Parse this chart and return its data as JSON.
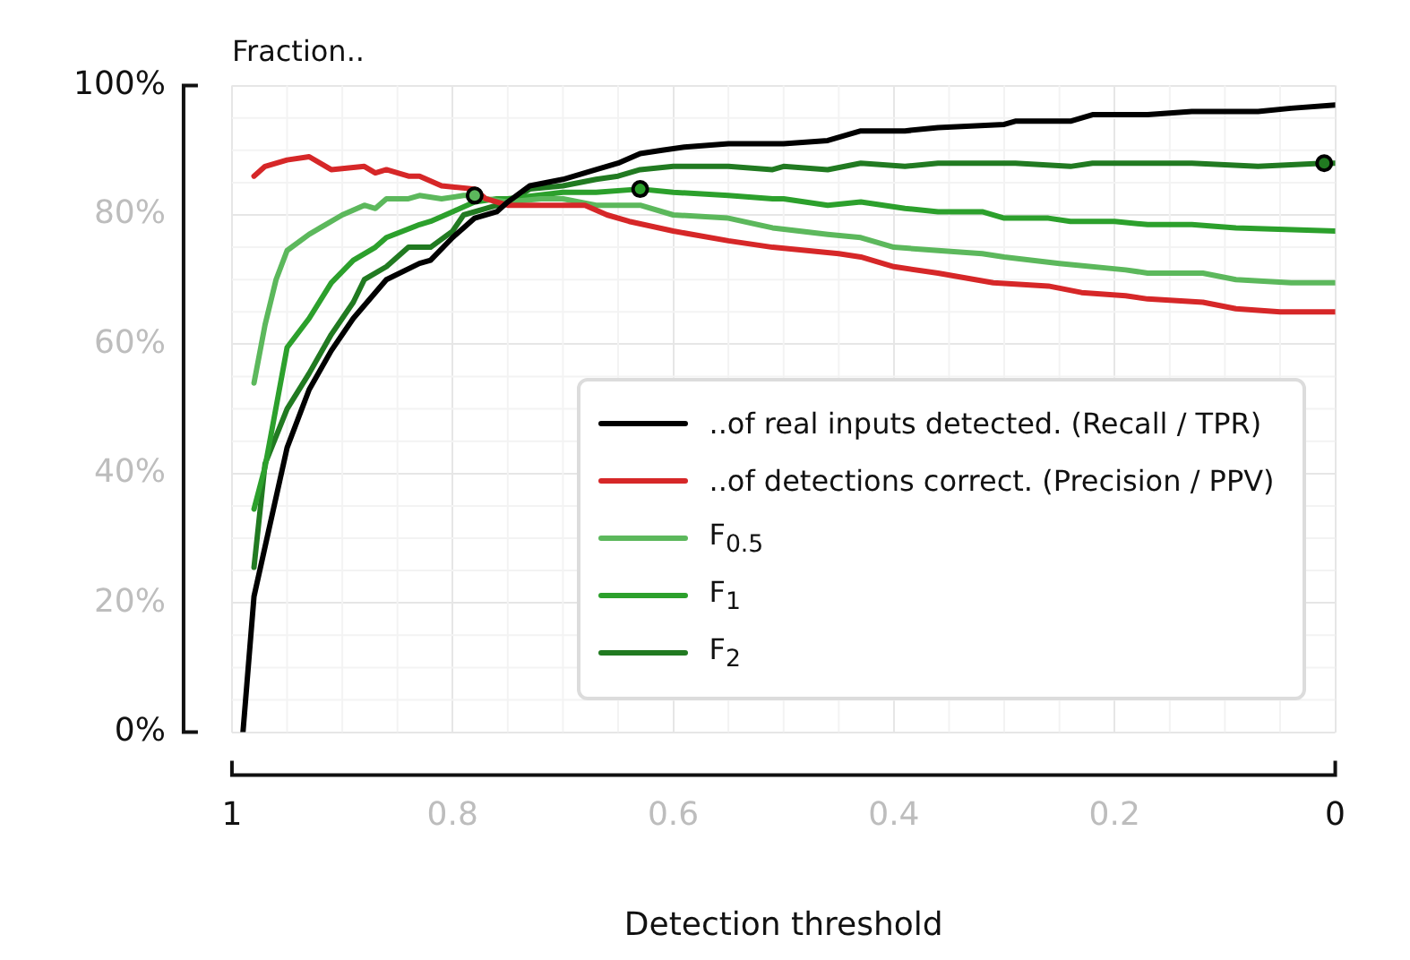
{
  "chart_data": {
    "type": "line",
    "ylabel": "Fraction..",
    "xlabel": "Detection threshold",
    "xlim": [
      1,
      0
    ],
    "xticks": [
      1,
      0.8,
      0.6,
      0.4,
      0.2,
      0
    ],
    "ylim": [
      0,
      100
    ],
    "yticks": [
      {
        "value": 0,
        "label": "0%"
      },
      {
        "value": 20,
        "label": "20%"
      },
      {
        "value": 40,
        "label": "40%"
      },
      {
        "value": 60,
        "label": "60%"
      },
      {
        "value": 80,
        "label": "80%"
      },
      {
        "value": 100,
        "label": "100%"
      }
    ],
    "grid": true,
    "legend": "bottom right",
    "marker": "none",
    "series": [
      {
        "name": "..of real inputs detected. (Recall / TPR)",
        "color": "#000000",
        "x": [
          0.99,
          0.98,
          0.95,
          0.93,
          0.91,
          0.89,
          0.86,
          0.83,
          0.82,
          0.8,
          0.78,
          0.76,
          0.75,
          0.73,
          0.7,
          0.67,
          0.65,
          0.63,
          0.61,
          0.59,
          0.55,
          0.5,
          0.46,
          0.43,
          0.39,
          0.36,
          0.3,
          0.29,
          0.24,
          0.22,
          0.17,
          0.13,
          0.07,
          0.04,
          0
        ],
        "values": [
          0,
          21,
          44,
          53,
          59,
          64,
          70,
          72.5,
          73,
          76.5,
          79.5,
          80.5,
          82,
          84.5,
          85.5,
          87,
          88,
          89.5,
          90,
          90.5,
          91,
          91,
          91.5,
          93,
          93,
          93.5,
          94,
          94.5,
          94.5,
          95.5,
          95.5,
          96,
          96,
          96.5,
          97
        ]
      },
      {
        "name": "..of detections correct. (Precision / PPV)",
        "color": "#d62728",
        "x": [
          0.98,
          0.97,
          0.95,
          0.93,
          0.91,
          0.88,
          0.87,
          0.86,
          0.84,
          0.83,
          0.81,
          0.78,
          0.77,
          0.75,
          0.73,
          0.7,
          0.68,
          0.66,
          0.64,
          0.6,
          0.55,
          0.51,
          0.45,
          0.43,
          0.4,
          0.36,
          0.31,
          0.26,
          0.23,
          0.19,
          0.17,
          0.12,
          0.09,
          0.05,
          0
        ],
        "values": [
          86,
          87.5,
          88.5,
          89,
          87,
          87.5,
          86.5,
          87,
          86,
          86,
          84.5,
          84,
          82.5,
          81.5,
          81.5,
          81.5,
          81.5,
          80,
          79,
          77.5,
          76,
          75,
          74,
          73.5,
          72,
          71,
          69.5,
          69,
          68,
          67.5,
          67,
          66.5,
          65.5,
          65,
          65
        ]
      },
      {
        "name": "F$_{0.5}$",
        "color": "#5cb85c",
        "x": [
          0.98,
          0.97,
          0.96,
          0.95,
          0.93,
          0.92,
          0.9,
          0.88,
          0.87,
          0.86,
          0.84,
          0.83,
          0.81,
          0.79,
          0.78,
          0.77,
          0.75,
          0.72,
          0.7,
          0.67,
          0.65,
          0.63,
          0.6,
          0.55,
          0.51,
          0.46,
          0.43,
          0.4,
          0.36,
          0.32,
          0.3,
          0.25,
          0.19,
          0.17,
          0.12,
          0.09,
          0.04,
          0
        ],
        "values": [
          54,
          63,
          70,
          74.5,
          77,
          78,
          80,
          81.5,
          81,
          82.5,
          82.5,
          83,
          82.5,
          83,
          83,
          82.5,
          82,
          82.5,
          82.5,
          81.5,
          81.5,
          81.5,
          80,
          79.5,
          78,
          77,
          76.5,
          75,
          74.5,
          74,
          73.5,
          72.5,
          71.5,
          71,
          71,
          70,
          69.5,
          69.5
        ]
      },
      {
        "name": "F$_{1}$",
        "color": "#2ca02c",
        "x": [
          0.98,
          0.97,
          0.95,
          0.93,
          0.91,
          0.89,
          0.87,
          0.86,
          0.83,
          0.82,
          0.8,
          0.78,
          0.76,
          0.75,
          0.7,
          0.67,
          0.63,
          0.6,
          0.55,
          0.51,
          0.5,
          0.46,
          0.43,
          0.39,
          0.36,
          0.32,
          0.3,
          0.26,
          0.24,
          0.2,
          0.17,
          0.13,
          0.09,
          0
        ],
        "values": [
          34.5,
          41,
          59.5,
          64,
          69.5,
          73,
          75,
          76.5,
          78.5,
          79,
          80.5,
          82,
          82.5,
          82.5,
          83.5,
          83.5,
          84,
          83.5,
          83,
          82.5,
          82.5,
          81.5,
          82,
          81,
          80.5,
          80.5,
          79.5,
          79.5,
          79,
          79,
          78.5,
          78.5,
          78,
          77.5
        ]
      },
      {
        "name": "F$_{2}$",
        "color": "#217a21",
        "x": [
          0.98,
          0.97,
          0.95,
          0.93,
          0.91,
          0.89,
          0.88,
          0.86,
          0.84,
          0.82,
          0.8,
          0.79,
          0.77,
          0.75,
          0.73,
          0.7,
          0.67,
          0.65,
          0.63,
          0.6,
          0.55,
          0.51,
          0.5,
          0.46,
          0.43,
          0.39,
          0.36,
          0.3,
          0.29,
          0.24,
          0.22,
          0.17,
          0.13,
          0.07,
          0.01,
          0
        ],
        "values": [
          25.5,
          41.5,
          50,
          55.5,
          61.5,
          66.5,
          70,
          72,
          75,
          75,
          77.5,
          80,
          81,
          82,
          84,
          84.5,
          85.5,
          86,
          87,
          87.5,
          87.5,
          87,
          87.5,
          87,
          88,
          87.5,
          88,
          88,
          88,
          87.5,
          88,
          88,
          88,
          87.5,
          88,
          88
        ]
      },
      {
        "type": "scatter",
        "marker": "circle",
        "color": "#5cb85c",
        "x": [
          0.78
        ],
        "values": [
          83
        ]
      },
      {
        "type": "scatter",
        "marker": "circle",
        "color": "#2ca02c",
        "x": [
          0.63
        ],
        "values": [
          84
        ]
      },
      {
        "type": "scatter",
        "marker": "circle",
        "color": "#217a21",
        "x": [
          0.01
        ],
        "values": [
          88
        ]
      }
    ]
  }
}
